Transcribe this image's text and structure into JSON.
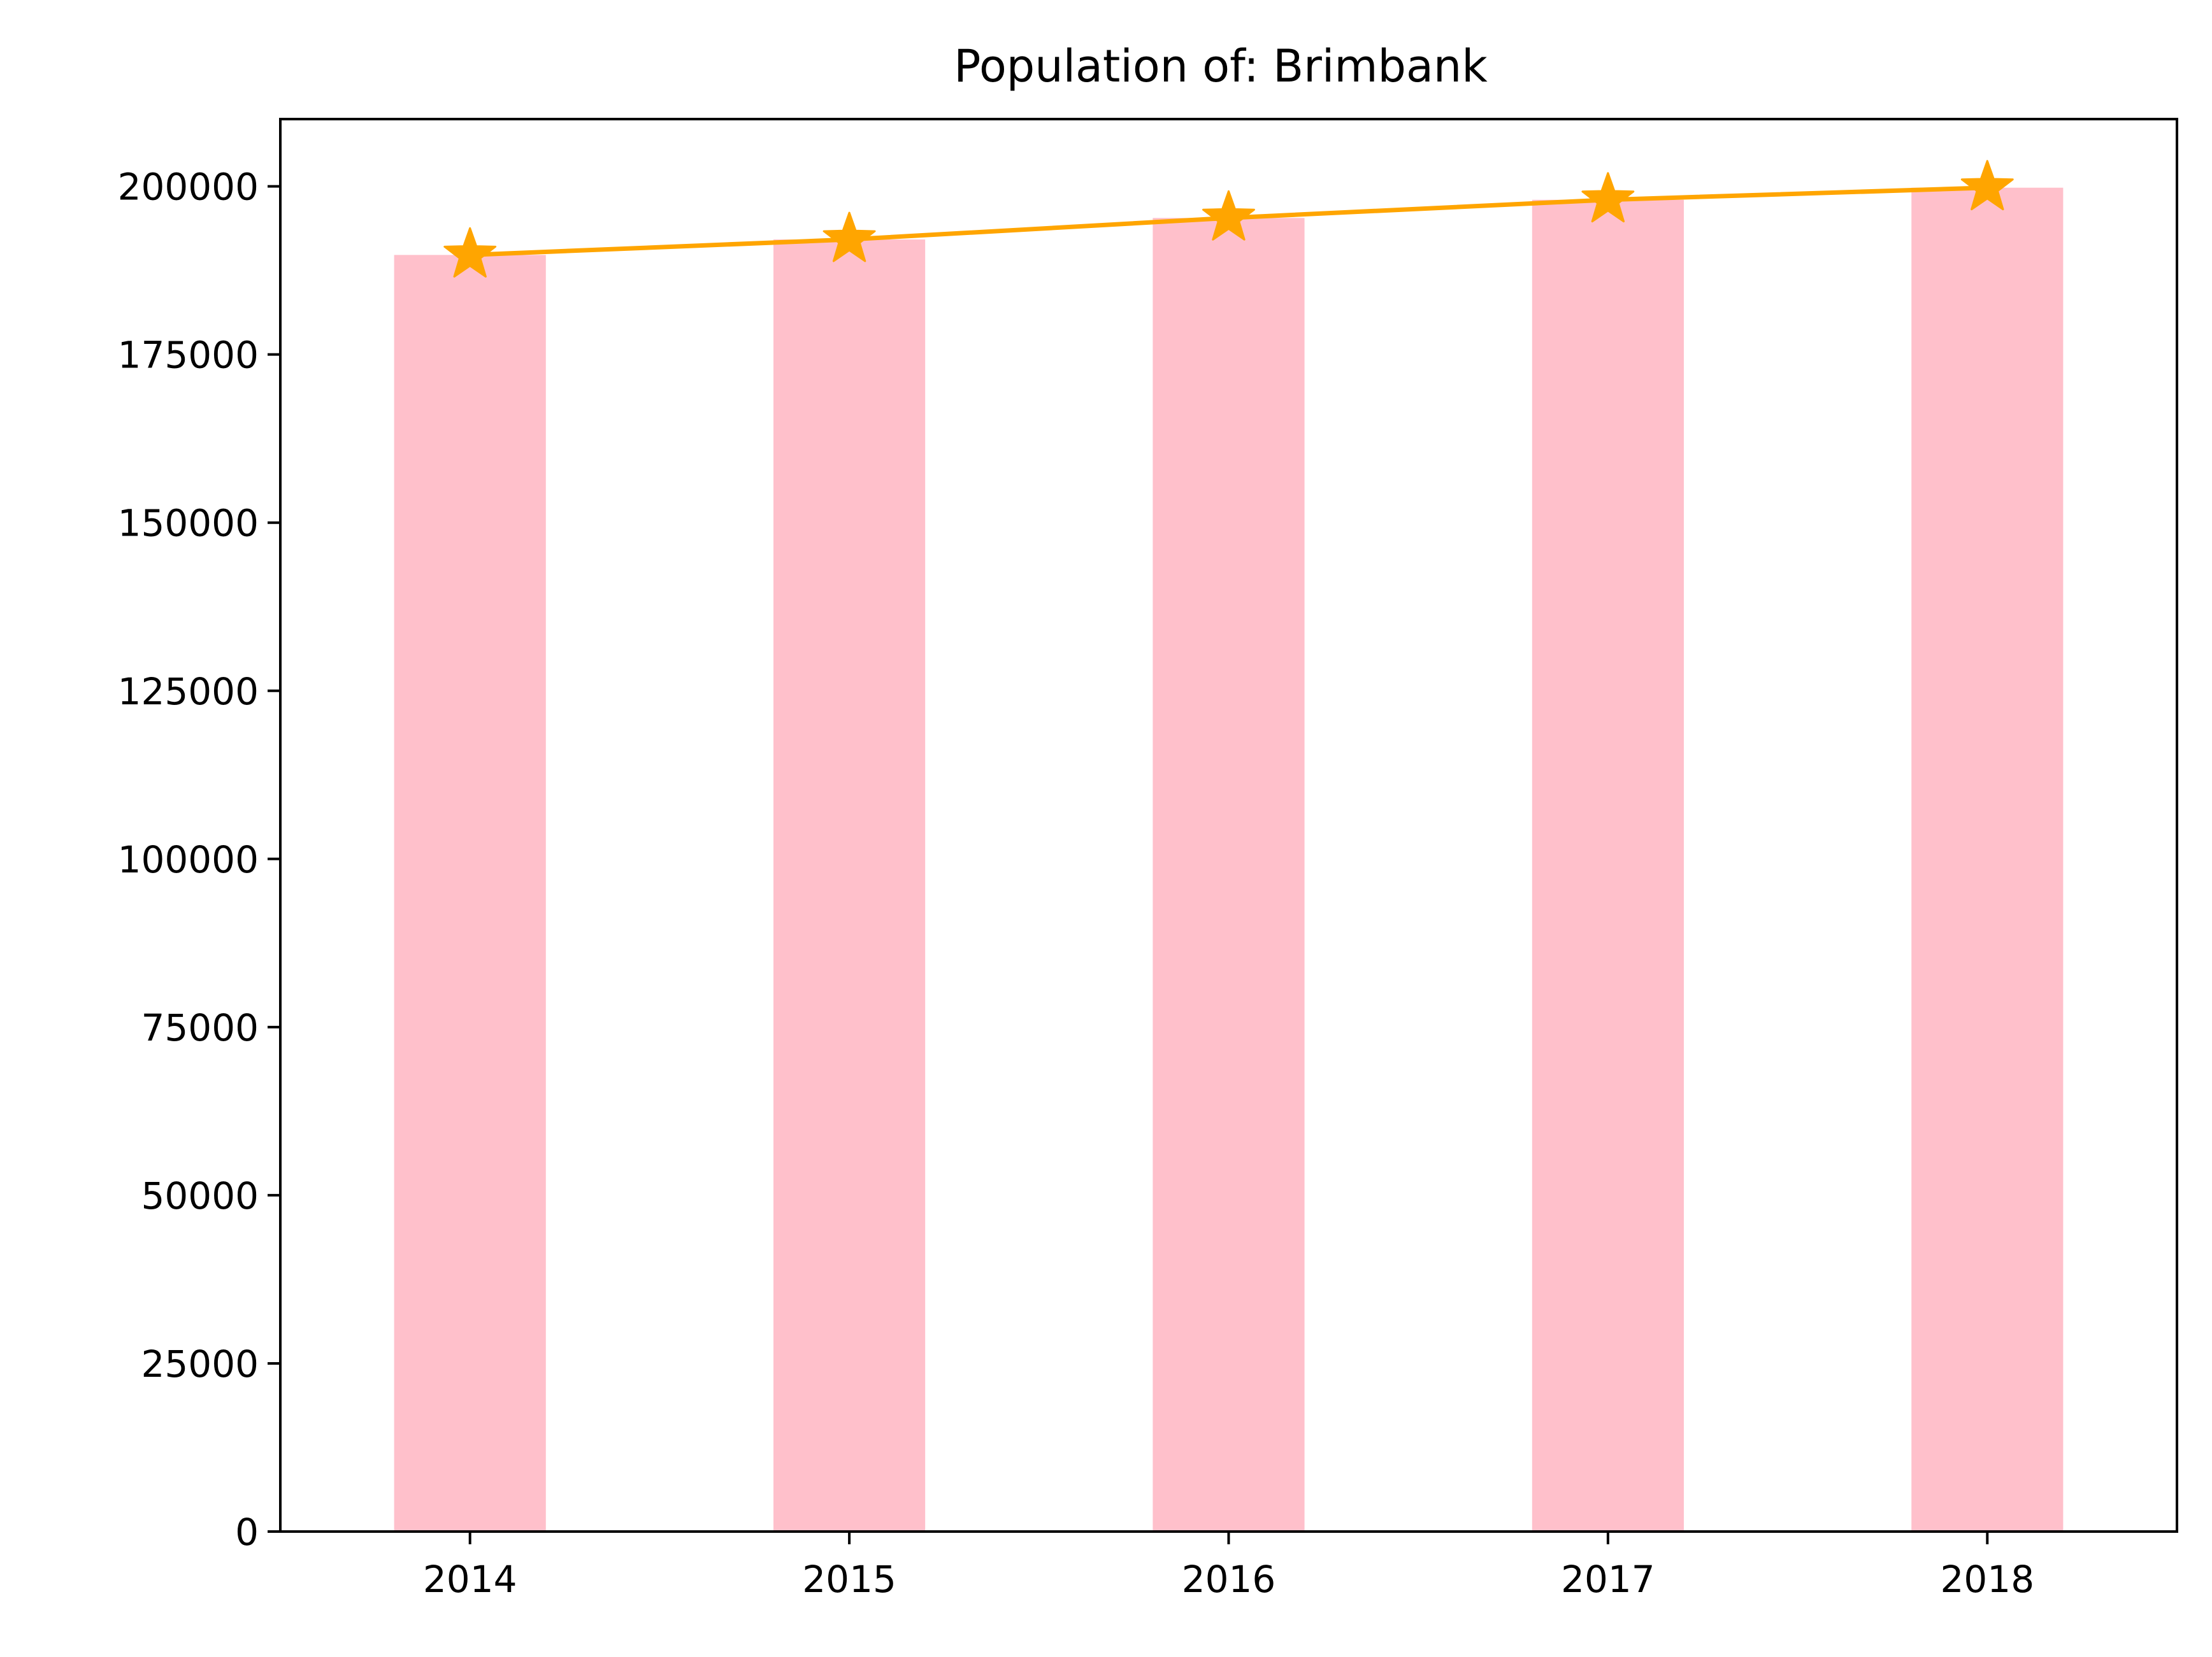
{
  "chart_data": {
    "type": "bar",
    "title": "Population of: Brimbank",
    "xlabel": "",
    "ylabel": "",
    "categories": [
      "2014",
      "2015",
      "2016",
      "2017",
      "2018"
    ],
    "series": [
      {
        "kind": "bar",
        "color": "#ffc0cb",
        "values": [
          189800,
          192100,
          195300,
          198000,
          199800
        ]
      },
      {
        "kind": "line",
        "marker": "star",
        "color": "#ffa500",
        "values": [
          189800,
          192100,
          195300,
          198000,
          199800
        ]
      }
    ],
    "ylim": [
      0,
      210000
    ],
    "yticks": [
      0,
      25000,
      50000,
      75000,
      100000,
      125000,
      150000,
      175000,
      200000
    ],
    "ytick_labels": [
      "0",
      "25000",
      "50000",
      "75000",
      "100000",
      "125000",
      "150000",
      "175000",
      "200000"
    ],
    "grid": false,
    "legend": "none"
  }
}
